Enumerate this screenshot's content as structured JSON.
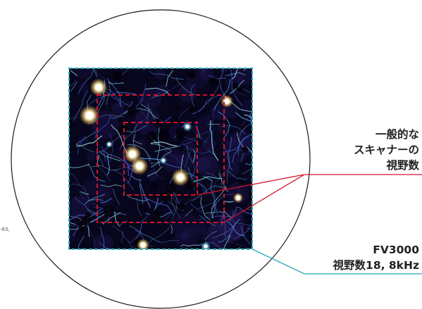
{
  "labels": {
    "scanner_line1": "一般的な",
    "scanner_line2": "スキャナーの",
    "scanner_line3": "視野数",
    "fv3000_line1": "FV3000",
    "fv3000_line2": "視野数18, 8kHz",
    "edge_fragment": "-83,"
  },
  "colors": {
    "fov_circle": "#1a1a1a",
    "scanner_fov": "#d3132a",
    "fv3000_fov": "#2aa9b3",
    "image_background": "#07061c",
    "text": "#231f20"
  },
  "image": {
    "description_icon": "neuron-fluorescence-image"
  }
}
